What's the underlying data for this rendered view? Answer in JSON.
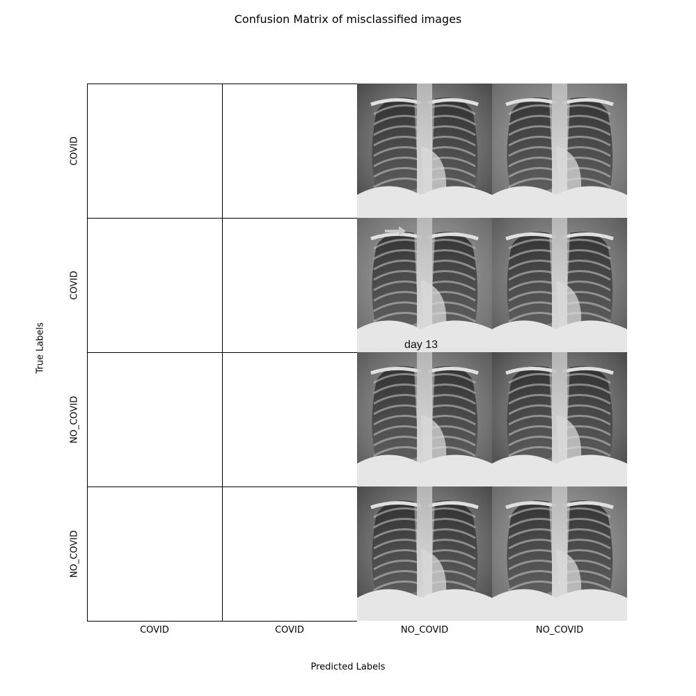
{
  "chart_data": {
    "type": "heatmap",
    "title": "Confusion Matrix of misclassified images",
    "xlabel": "Predicted Labels",
    "ylabel": "True Labels",
    "x_tick_labels": [
      "COVID",
      "COVID",
      "NO_COVID",
      "NO_COVID"
    ],
    "y_tick_labels": [
      "COVID",
      "COVID",
      "NO_COVID",
      "NO_COVID"
    ],
    "cells": [
      [
        {
          "content": "empty"
        },
        {
          "content": "empty"
        },
        {
          "content": "chest-xray"
        },
        {
          "content": "chest-xray"
        }
      ],
      [
        {
          "content": "empty"
        },
        {
          "content": "empty"
        },
        {
          "content": "chest-xray",
          "overlay_text": "day 13",
          "marker": "arrow"
        },
        {
          "content": "chest-xray"
        }
      ],
      [
        {
          "content": "empty"
        },
        {
          "content": "empty"
        },
        {
          "content": "chest-xray"
        },
        {
          "content": "chest-xray"
        }
      ],
      [
        {
          "content": "empty"
        },
        {
          "content": "empty"
        },
        {
          "content": "chest-xray"
        },
        {
          "content": "chest-xray"
        }
      ]
    ]
  }
}
